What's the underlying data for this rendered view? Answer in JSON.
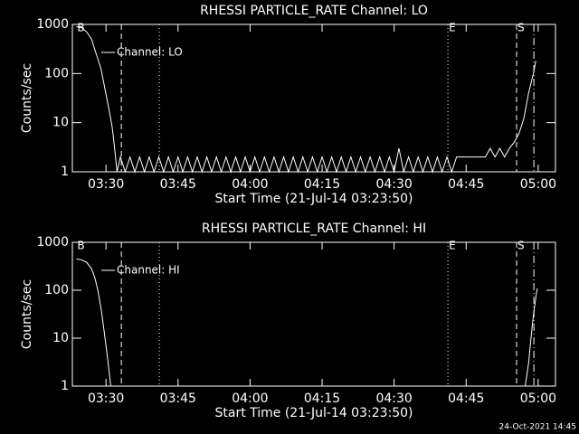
{
  "chart_data": [
    {
      "type": "line",
      "title": "RHESSI PARTICLE_RATE Channel: LO",
      "xlabel": "Start Time (21-Jul-14 03:23:50)",
      "ylabel": "Counts/sec",
      "log_y": true,
      "ylim": [
        1,
        1000
      ],
      "yticks": [
        1,
        10,
        100,
        1000
      ],
      "xlim": [
        203,
        303.6
      ],
      "xticks": [
        {
          "value": 210,
          "label": "03:30"
        },
        {
          "value": 225,
          "label": "03:45"
        },
        {
          "value": 240,
          "label": "04:00"
        },
        {
          "value": 255,
          "label": "04:15"
        },
        {
          "value": 270,
          "label": "04:30"
        },
        {
          "value": 285,
          "label": "04:45"
        },
        {
          "value": 300,
          "label": "05:00"
        }
      ],
      "vlines": [
        {
          "x": 213.2,
          "dash": "dashed"
        },
        {
          "x": 221.1,
          "dash": "dotted"
        },
        {
          "x": 281.2,
          "dash": "dotted"
        },
        {
          "x": 295.5,
          "dash": "dashed"
        },
        {
          "x": 299.1,
          "dash": "dashdot"
        }
      ],
      "events": [
        {
          "label": "B",
          "x": 203.83
        },
        {
          "label": "E",
          "x": 281.2
        },
        {
          "label": "S",
          "x": 295.5
        }
      ],
      "series": [
        {
          "name": "Channel: LO",
          "color": "#ffffff",
          "x": [
            203.83,
            205,
            206,
            207,
            207.7,
            208.3,
            209,
            209.6,
            210.2,
            210.8,
            211.3,
            211.8,
            212.3,
            213,
            214,
            215,
            216,
            217,
            218,
            219,
            220,
            221,
            222,
            223,
            224,
            225,
            226,
            227,
            228,
            229,
            230,
            231,
            232,
            233,
            234,
            235,
            236,
            237,
            238,
            239,
            240,
            241,
            242,
            243,
            244,
            245,
            246,
            247,
            248,
            249,
            250,
            251,
            252,
            253,
            254,
            255,
            256,
            257,
            258,
            259,
            260,
            261,
            262,
            263,
            264,
            265,
            266,
            267,
            268,
            269,
            270,
            271,
            272,
            273,
            274,
            275,
            276,
            277,
            278,
            279,
            280,
            281,
            282,
            283,
            289,
            290,
            291,
            292,
            293,
            294,
            295,
            296,
            297,
            298,
            299,
            299.5
          ],
          "values": [
            900,
            850,
            700,
            500,
            300,
            200,
            120,
            60,
            30,
            15,
            8,
            3,
            1,
            2,
            1,
            2,
            1,
            2,
            1,
            2,
            1,
            2,
            1,
            2,
            1,
            2,
            1,
            2,
            1,
            2,
            1,
            2,
            1,
            2,
            1,
            2,
            1,
            2,
            1,
            2,
            1,
            2,
            1,
            2,
            1,
            2,
            1,
            2,
            1,
            2,
            1,
            2,
            1,
            2,
            1,
            2,
            1,
            2,
            1,
            2,
            1,
            2,
            1,
            2,
            1,
            2,
            1,
            2,
            1,
            2,
            1,
            3,
            1,
            2,
            1,
            2,
            1,
            2,
            1,
            2,
            1,
            2,
            1,
            2,
            2,
            3,
            2,
            3,
            2,
            3,
            4,
            6,
            12,
            40,
            100,
            180
          ]
        }
      ]
    },
    {
      "type": "line",
      "title": "RHESSI PARTICLE_RATE Channel: HI",
      "xlabel": "Start Time (21-Jul-14 03:23:50)",
      "ylabel": "Counts/sec",
      "log_y": true,
      "ylim": [
        1,
        1000
      ],
      "yticks": [
        1,
        10,
        100,
        1000
      ],
      "xlim": [
        203,
        303.6
      ],
      "xticks": [
        {
          "value": 210,
          "label": "03:30"
        },
        {
          "value": 225,
          "label": "03:45"
        },
        {
          "value": 240,
          "label": "04:00"
        },
        {
          "value": 255,
          "label": "04:15"
        },
        {
          "value": 270,
          "label": "04:30"
        },
        {
          "value": 285,
          "label": "04:45"
        },
        {
          "value": 300,
          "label": "05:00"
        }
      ],
      "vlines": [
        {
          "x": 213.2,
          "dash": "dashed"
        },
        {
          "x": 221.1,
          "dash": "dotted"
        },
        {
          "x": 281.2,
          "dash": "dotted"
        },
        {
          "x": 295.5,
          "dash": "dashed"
        },
        {
          "x": 299.1,
          "dash": "dashdot"
        }
      ],
      "events": [
        {
          "label": "B",
          "x": 203.83
        },
        {
          "label": "E",
          "x": 281.2
        },
        {
          "label": "S",
          "x": 295.5
        }
      ],
      "series": [
        {
          "name": "Channel: HI",
          "color": "#ffffff",
          "x": [
            203.83,
            205,
            206,
            207,
            207.7,
            208.3,
            209,
            209.7,
            210.3,
            211,
            250,
            297.3,
            298,
            298.5,
            299,
            299.5,
            299.8
          ],
          "values": [
            450,
            430,
            380,
            280,
            180,
            100,
            40,
            12,
            4,
            1,
            null,
            1,
            3,
            10,
            30,
            70,
            110
          ]
        }
      ]
    }
  ],
  "footer": "24-Oct-2021 14:45"
}
